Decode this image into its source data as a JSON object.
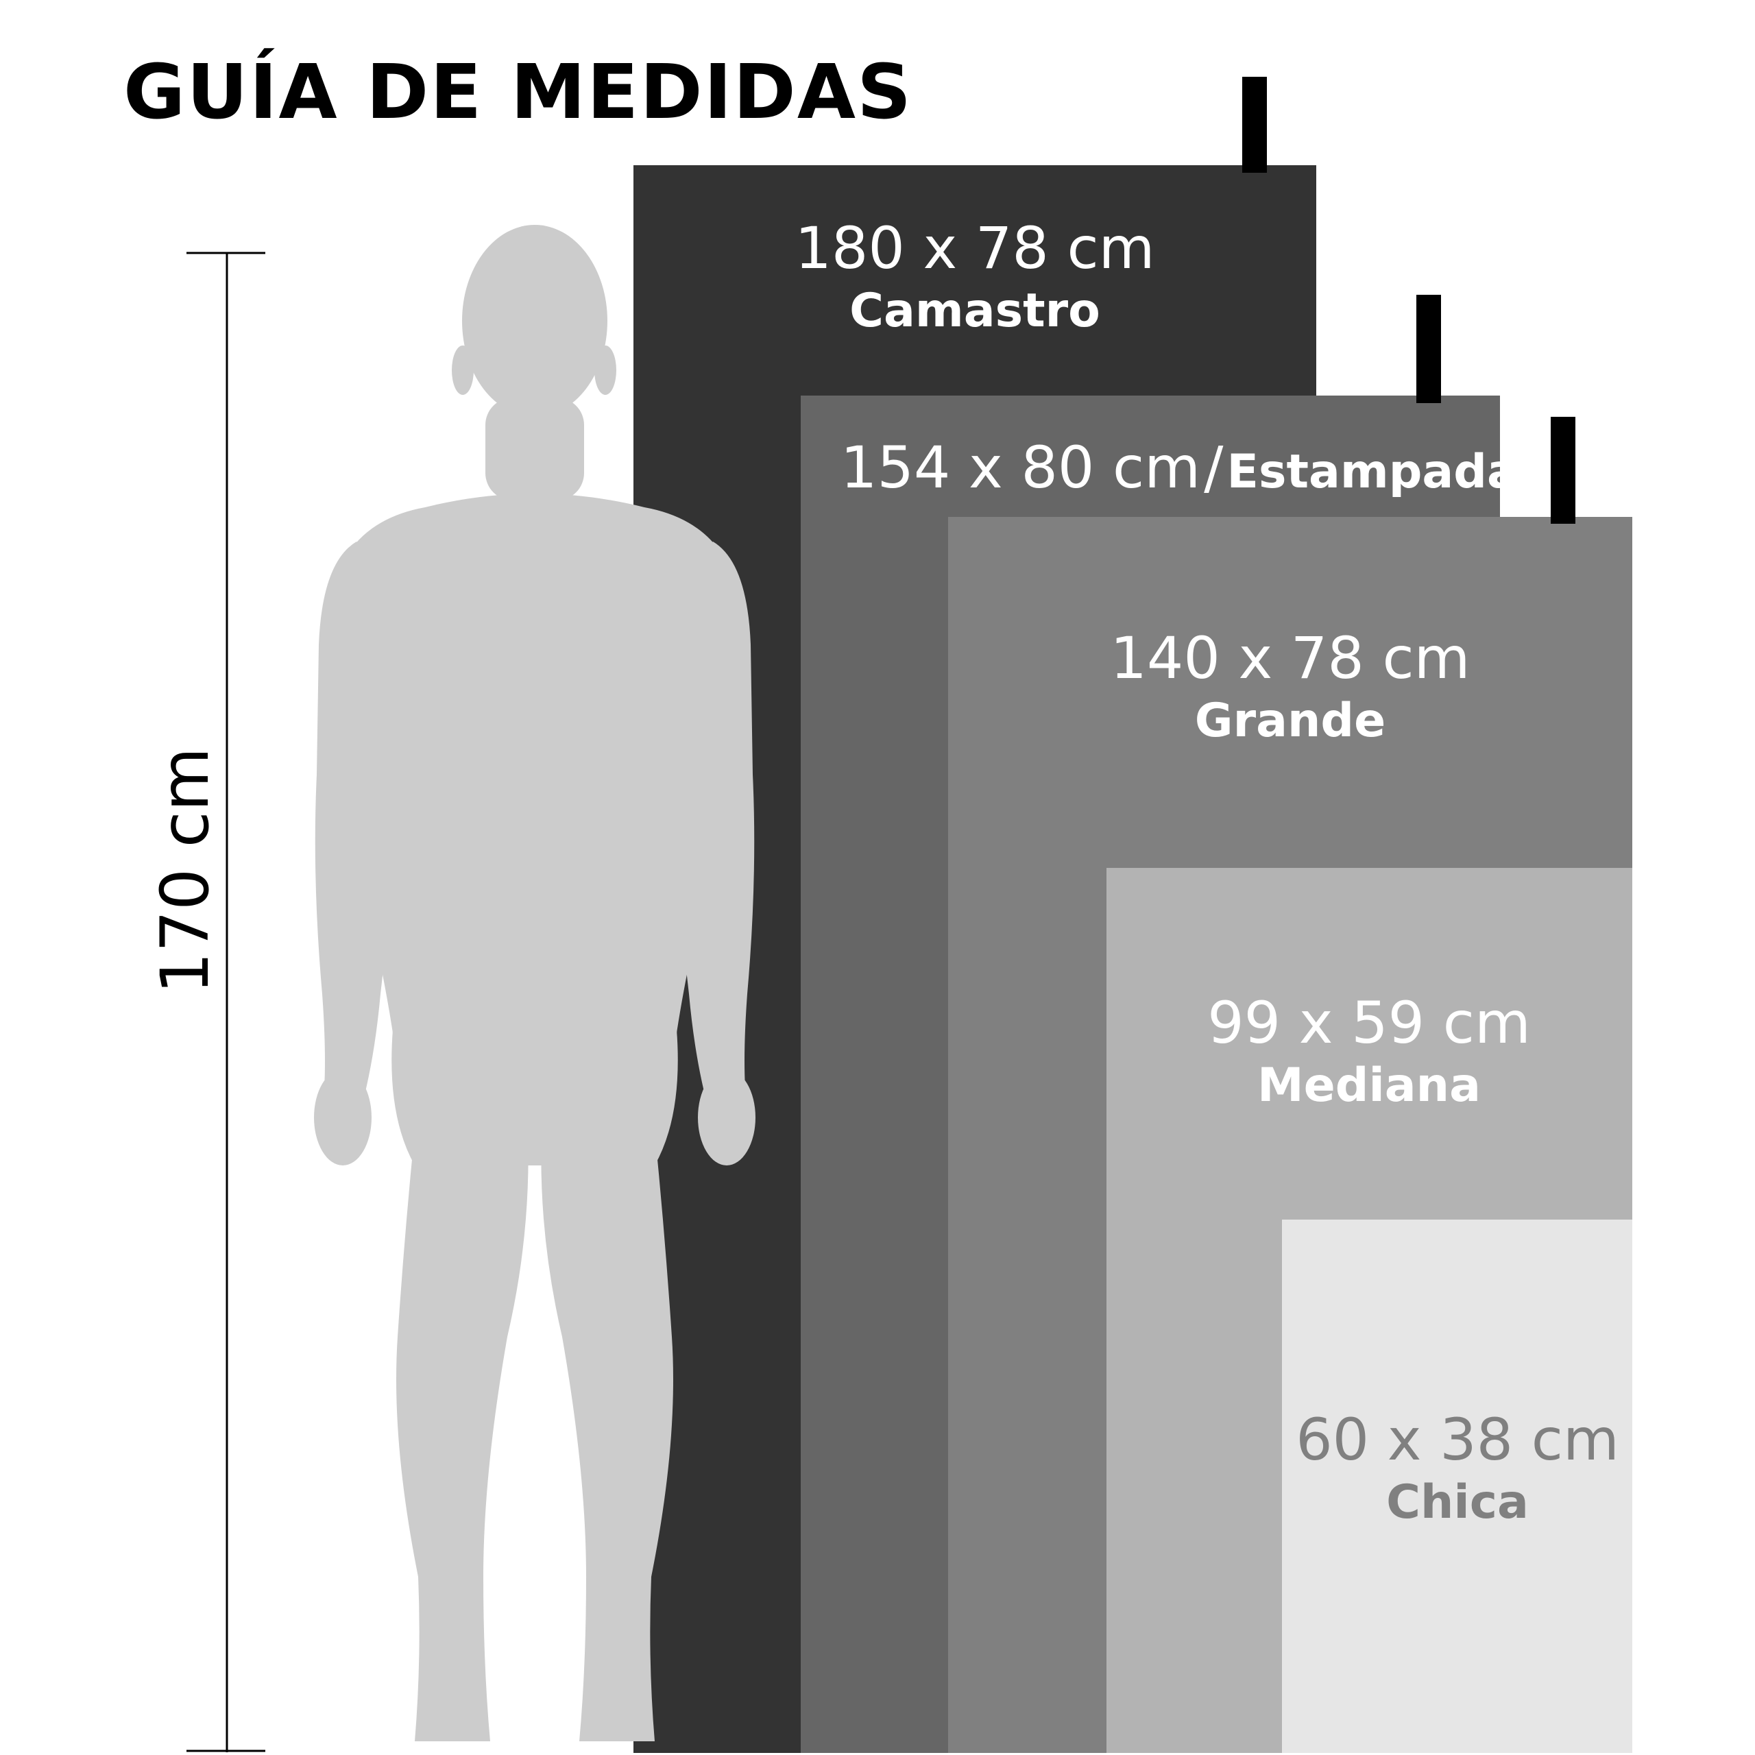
{
  "title": "GUÍA DE MEDIDAS",
  "person": {
    "height_label": "170 cm",
    "silhouette_icon": "human-silhouette-icon",
    "color": "#cccccc"
  },
  "sizes": [
    {
      "dimensions": "180 x 78 cm",
      "name": "Camastro",
      "color": "#333333",
      "text_color": "#ffffff"
    },
    {
      "dimensions": "154 x 80 cm",
      "separator": "/",
      "name": "Estampada",
      "color": "#666666",
      "text_color": "#ffffff"
    },
    {
      "dimensions": "140 x 78 cm",
      "name": "Grande",
      "color": "#808080",
      "text_color": "#ffffff"
    },
    {
      "dimensions": "99 x 59 cm",
      "name": "Mediana",
      "color": "#b3b3b3",
      "text_color": "#ffffff"
    },
    {
      "dimensions": "60 x 38 cm",
      "name": "Chica",
      "color": "#e6e6e6",
      "text_color": "#808080"
    }
  ]
}
